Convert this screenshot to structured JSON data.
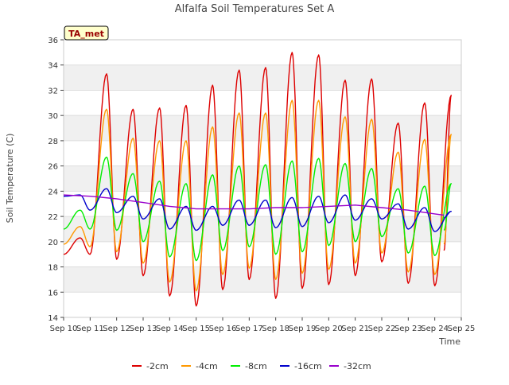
{
  "chart_data": {
    "type": "line",
    "title": "Alfalfa Soil Temperatures Set A",
    "xlabel": "Time",
    "ylabel": "Soil Temperature (C)",
    "annotation": "TA_met",
    "x_ticks": [
      "Sep 10",
      "Sep 11",
      "Sep 12",
      "Sep 13",
      "Sep 14",
      "Sep 15",
      "Sep 16",
      "Sep 17",
      "Sep 18",
      "Sep 19",
      "Sep 20",
      "Sep 21",
      "Sep 22",
      "Sep 23",
      "Sep 24",
      "Sep 25"
    ],
    "xlim": [
      0,
      15
    ],
    "ylim": [
      14,
      36
    ],
    "y_ticks": [
      14,
      16,
      18,
      20,
      22,
      24,
      26,
      28,
      30,
      32,
      34,
      36
    ],
    "grid": "horizontal bands",
    "legend_position": "bottom",
    "x_unit_note": "x values are days since Sep 10",
    "daily_peak_fraction": 0.62,
    "series": [
      {
        "name": "-2cm",
        "color": "#dd0000",
        "days": [
          0,
          1,
          2,
          3,
          4,
          5,
          6,
          7,
          8,
          9,
          10,
          11,
          12,
          13,
          14
        ],
        "daily_min": [
          19.0,
          19.0,
          18.6,
          17.3,
          15.7,
          14.9,
          16.2,
          17.0,
          15.5,
          16.3,
          16.6,
          17.3,
          18.4,
          16.7,
          16.5
        ],
        "daily_max": [
          20.3,
          33.3,
          30.5,
          30.6,
          30.8,
          32.4,
          33.6,
          33.8,
          35.0,
          34.8,
          32.8,
          32.9,
          29.4,
          31.0,
          31.6
        ],
        "end_value": 19.3,
        "end_day": 14.35
      },
      {
        "name": "-4cm",
        "color": "#ff9900",
        "days": [
          0,
          1,
          2,
          3,
          4,
          5,
          6,
          7,
          8,
          9,
          10,
          11,
          12,
          13,
          14
        ],
        "daily_min": [
          19.8,
          19.6,
          19.2,
          18.3,
          16.8,
          16.1,
          17.4,
          17.9,
          17.0,
          17.5,
          17.8,
          18.3,
          19.1,
          17.6,
          17.4
        ],
        "daily_max": [
          21.2,
          30.5,
          28.2,
          28.0,
          28.0,
          29.1,
          30.2,
          30.2,
          31.2,
          31.2,
          29.9,
          29.7,
          27.1,
          28.1,
          28.5
        ],
        "end_value": 19.8,
        "end_day": 14.35
      },
      {
        "name": "-8cm",
        "color": "#00ee00",
        "days": [
          0,
          1,
          2,
          3,
          4,
          5,
          6,
          7,
          8,
          9,
          10,
          11,
          12,
          13,
          14
        ],
        "daily_min": [
          21.0,
          21.0,
          20.9,
          20.0,
          18.8,
          18.5,
          19.3,
          19.6,
          19.0,
          19.2,
          19.7,
          20.0,
          20.4,
          19.1,
          18.9
        ],
        "daily_max": [
          22.5,
          26.7,
          25.4,
          24.8,
          24.6,
          25.3,
          26.0,
          26.1,
          26.4,
          26.6,
          26.2,
          25.8,
          24.2,
          24.4,
          24.6
        ],
        "end_value": 20.9,
        "end_day": 14.35
      },
      {
        "name": "-16cm",
        "color": "#0000cc",
        "days": [
          0,
          1,
          2,
          3,
          4,
          5,
          6,
          7,
          8,
          9,
          10,
          11,
          12,
          13,
          14
        ],
        "daily_min": [
          23.6,
          22.5,
          22.3,
          21.8,
          21.0,
          20.9,
          21.3,
          21.3,
          21.1,
          21.2,
          21.5,
          21.7,
          21.8,
          21.0,
          20.8
        ],
        "daily_max": [
          23.7,
          24.2,
          23.6,
          23.4,
          22.8,
          22.8,
          23.3,
          23.3,
          23.5,
          23.6,
          23.7,
          23.4,
          23.0,
          22.7,
          22.4
        ],
        "end_value": 21.9,
        "end_day": 14.35
      },
      {
        "name": "-32cm",
        "color": "#9900cc",
        "x": [
          0,
          1,
          2,
          3,
          4,
          5,
          6,
          7,
          8,
          9,
          10,
          11,
          12,
          13,
          14,
          14.35
        ],
        "y": [
          23.7,
          23.6,
          23.4,
          23.1,
          22.8,
          22.6,
          22.6,
          22.6,
          22.7,
          22.7,
          22.8,
          22.9,
          22.7,
          22.5,
          22.2,
          22.1
        ]
      }
    ]
  }
}
